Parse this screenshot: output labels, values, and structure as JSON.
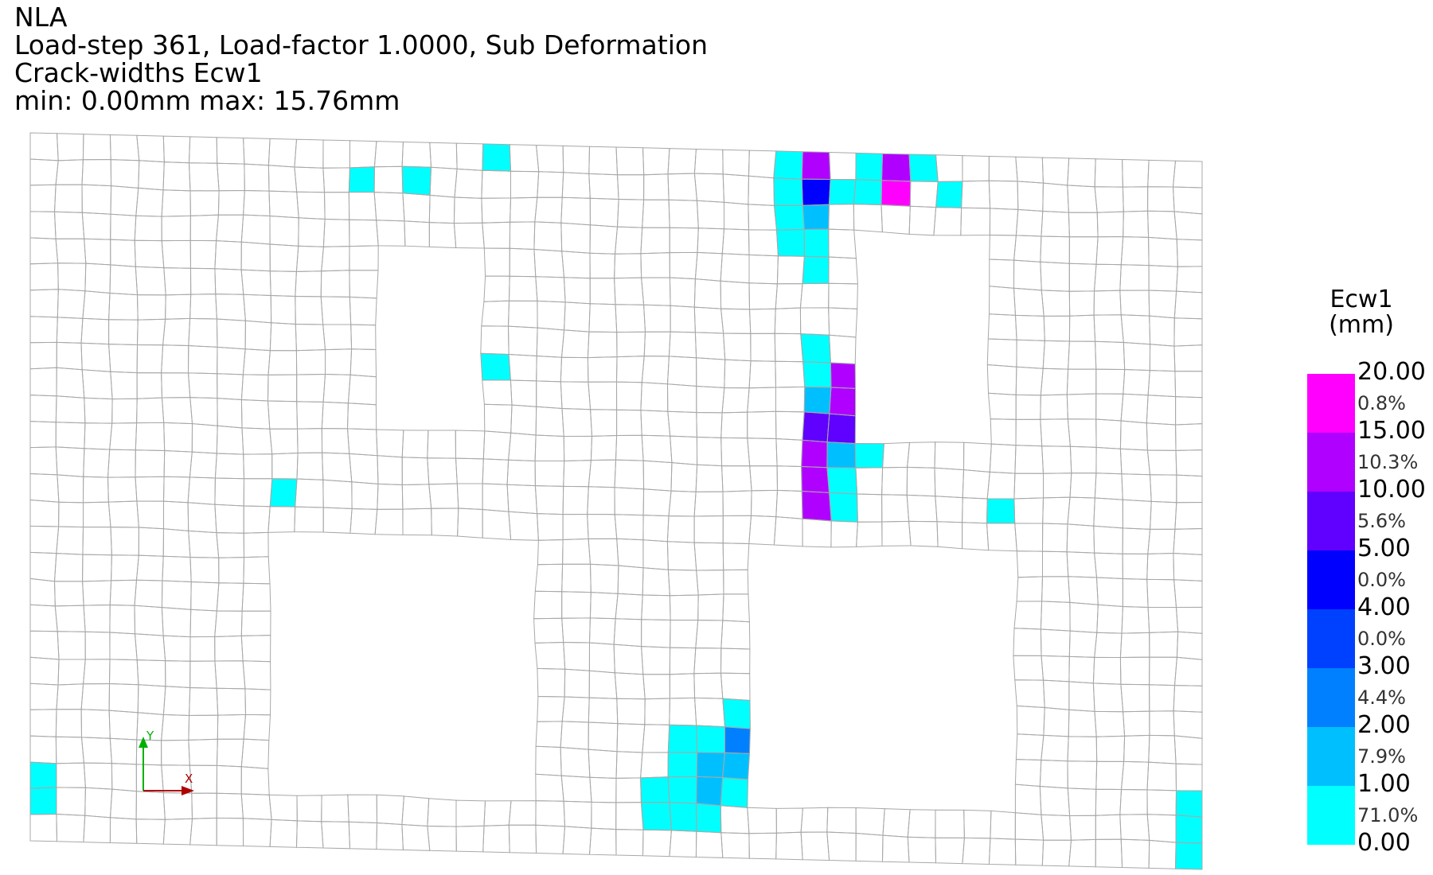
{
  "header": {
    "line1": "NLA",
    "line2": "Load-step 361, Load-factor 1.0000, Sub Deformation",
    "line3": "Crack-widths Ecw1",
    "line4": "min:  0.00mm max: 15.76mm"
  },
  "axes_triad": {
    "x_label": "X",
    "y_label": "Y",
    "x_color": "#b00000",
    "y_color": "#00b000"
  },
  "colors": {
    "mesh_line": "#a8a8a8",
    "band_0_1": "#00ffff",
    "band_1_2": "#00bfff",
    "band_2_3": "#0080ff",
    "band_3_4": "#0040ff",
    "band_4_5": "#0000ff",
    "band_5_10": "#6000ff",
    "band_10_15": "#b000ff",
    "band_15_20": "#ff00ff"
  },
  "legend": {
    "title_line1": "Ecw1",
    "title_line2": "(mm)",
    "values": [
      "20.00",
      "15.00",
      "10.00",
      "5.00",
      "4.00",
      "3.00",
      "2.00",
      "1.00",
      "0.00"
    ],
    "percents": [
      "0.8%",
      "10.3%",
      "5.6%",
      "0.0%",
      "0.0%",
      "4.4%",
      "7.9%",
      "71.0%"
    ],
    "band_colors": [
      "#ff00ff",
      "#b000ff",
      "#6000ff",
      "#0000ff",
      "#0040ff",
      "#0080ff",
      "#00bfff",
      "#00ffff"
    ]
  }
}
